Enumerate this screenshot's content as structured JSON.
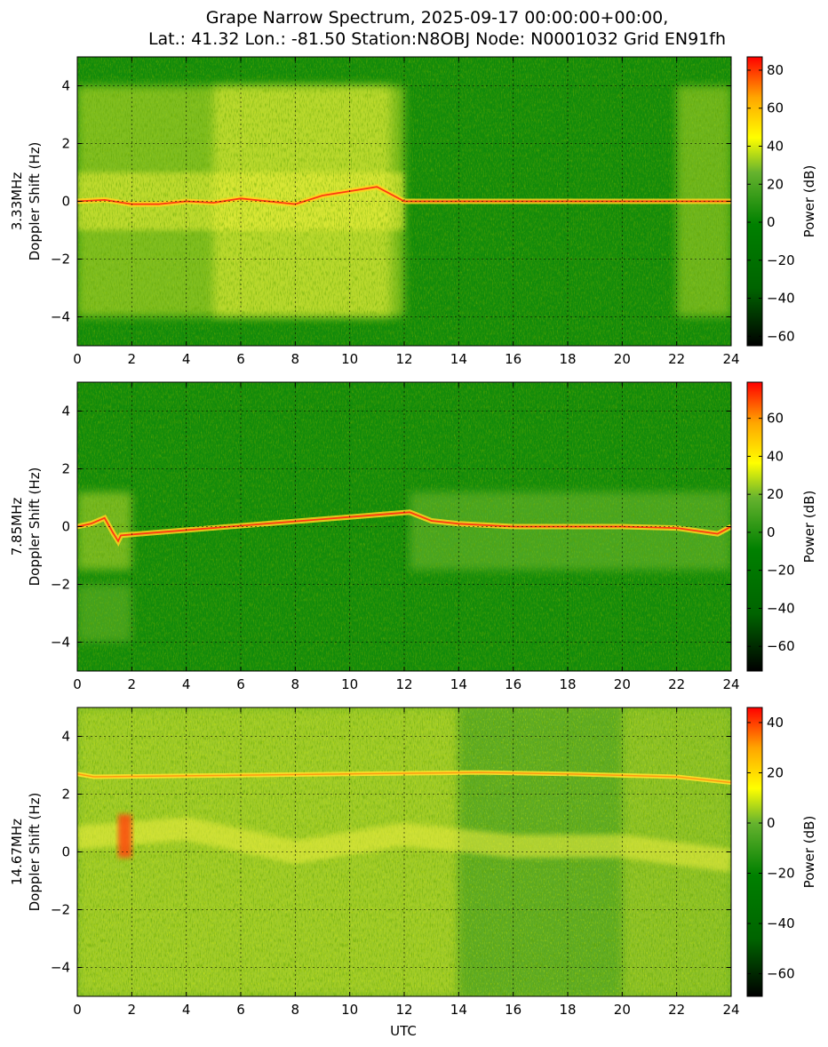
{
  "figure": {
    "title_line1": "Grape Narrow Spectrum, 2025-09-17 00:00:00+00:00,",
    "title_line2": "Lat.: 41.32 Lon.: -81.50 Station:N8OBJ Node: N0001032 Grid EN91fh",
    "xlabel": "UTC",
    "colormap": [
      "#000000",
      "#006400",
      "#008000",
      "#66b32e",
      "#ffff00",
      "#ffa500",
      "#ff0000"
    ]
  },
  "chart_data": [
    {
      "type": "heatmap",
      "frequency_label": "3.33MHz",
      "ylabel": "Doppler Shift (Hz)",
      "xlabel": "",
      "xlim": [
        0,
        24
      ],
      "ylim": [
        -5,
        5
      ],
      "x_ticks": [
        "0",
        "2",
        "4",
        "6",
        "8",
        "10",
        "12",
        "14",
        "16",
        "18",
        "20",
        "22",
        "24"
      ],
      "y_ticks": [
        "4",
        "2",
        "0",
        "−2",
        "−4"
      ],
      "grid": true,
      "colorbar": {
        "label": "Power (dB)",
        "range": [
          -65,
          87
        ],
        "ticks": [
          "80",
          "60",
          "40",
          "20",
          "0",
          "−20",
          "−40",
          "−60"
        ]
      },
      "features": {
        "carrier_trace": [
          [
            0,
            0.0
          ],
          [
            1,
            0.05
          ],
          [
            2,
            -0.1
          ],
          [
            3,
            -0.1
          ],
          [
            4,
            0.0
          ],
          [
            5,
            -0.05
          ],
          [
            6,
            0.1
          ],
          [
            7,
            0.0
          ],
          [
            8,
            -0.1
          ],
          [
            9,
            0.2
          ],
          [
            10,
            0.35
          ],
          [
            11,
            0.5
          ],
          [
            12,
            0.0
          ],
          [
            24,
            0.0
          ]
        ],
        "strong_trace_until_utc": 11.5,
        "broad_spread_utc": [
          [
            0,
            12
          ],
          [
            22,
            24
          ]
        ]
      }
    },
    {
      "type": "heatmap",
      "frequency_label": "7.85MHz",
      "ylabel": "Doppler Shift (Hz)",
      "xlabel": "",
      "xlim": [
        0,
        24
      ],
      "ylim": [
        -5,
        5
      ],
      "x_ticks": [
        "0",
        "2",
        "4",
        "6",
        "8",
        "10",
        "12",
        "14",
        "16",
        "18",
        "20",
        "22",
        "24"
      ],
      "y_ticks": [
        "4",
        "2",
        "0",
        "−2",
        "−4"
      ],
      "grid": true,
      "colorbar": {
        "label": "Power (dB)",
        "range": [
          -73,
          79
        ],
        "ticks": [
          "60",
          "40",
          "20",
          "0",
          "−20",
          "−40",
          "−60"
        ]
      },
      "features": {
        "carrier_trace": [
          [
            0,
            0.0
          ],
          [
            0.5,
            0.1
          ],
          [
            1.0,
            0.3
          ],
          [
            1.3,
            -0.2
          ],
          [
            1.5,
            -0.5
          ],
          [
            1.6,
            -0.3
          ],
          [
            12.2,
            0.5
          ],
          [
            13,
            0.2
          ],
          [
            14,
            0.1
          ],
          [
            16,
            0.0
          ],
          [
            18,
            0.0
          ],
          [
            20,
            0.0
          ],
          [
            22,
            -0.05
          ],
          [
            23.5,
            -0.25
          ],
          [
            24,
            0.0
          ]
        ],
        "strong_trace_utc": [
          [
            0,
            1.7
          ],
          [
            12.2,
            24
          ]
        ]
      }
    },
    {
      "type": "heatmap",
      "frequency_label": "14.67MHz",
      "ylabel": "Doppler Shift (Hz)",
      "xlabel": "UTC",
      "xlim": [
        0,
        24
      ],
      "ylim": [
        -5,
        5
      ],
      "x_ticks": [
        "0",
        "2",
        "4",
        "6",
        "8",
        "10",
        "12",
        "14",
        "16",
        "18",
        "20",
        "22",
        "24"
      ],
      "y_ticks": [
        "4",
        "2",
        "0",
        "−2",
        "−4"
      ],
      "grid": true,
      "colorbar": {
        "label": "Power (dB)",
        "range": [
          -69,
          46
        ],
        "ticks": [
          "40",
          "20",
          "0",
          "−20",
          "−40",
          "−60"
        ]
      },
      "features": {
        "upper_trace": [
          [
            0,
            2.7
          ],
          [
            0.6,
            2.6
          ],
          [
            14.8,
            2.75
          ],
          [
            18,
            2.7
          ],
          [
            20,
            2.65
          ],
          [
            22,
            2.6
          ],
          [
            24,
            2.4
          ]
        ],
        "burst_utc": [
          1.5,
          2.0
        ],
        "diffuse_band": [
          [
            0,
            0.5
          ],
          [
            4,
            0.8
          ],
          [
            8,
            0.0
          ],
          [
            12,
            0.6
          ],
          [
            16,
            0.2
          ],
          [
            20,
            0.2
          ],
          [
            24,
            -0.3
          ]
        ]
      }
    }
  ]
}
